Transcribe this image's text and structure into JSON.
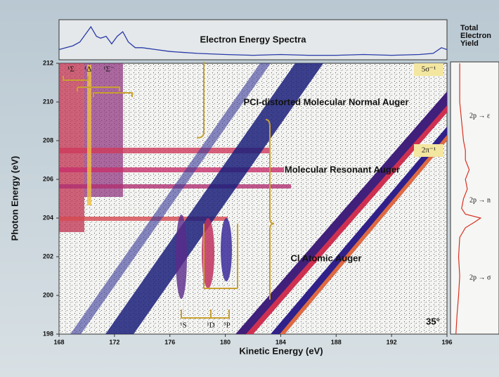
{
  "chart_data": {
    "type": "energy-map",
    "xlabel": "Kinetic Energy (eV)",
    "ylabel": "Photon Energy (eV)",
    "xlim": [
      168,
      196
    ],
    "xticks": [
      168,
      172,
      176,
      180,
      184,
      188,
      192,
      196
    ],
    "ylim": [
      198,
      212
    ],
    "yticks": [
      198,
      200,
      202,
      204,
      206,
      208,
      210,
      212
    ],
    "annotations": [
      "PCI-distorted Molecular Normal Auger",
      "Molecular Resonant Auger",
      "Cl Atomic Auger",
      "5σ⁻¹",
      "2π⁻¹",
      "35°",
      "¹Σ",
      "¹Δ",
      "¹Σ⁻",
      "¹S",
      "¹D",
      "³P"
    ],
    "top_spectrum": {
      "title": "Electron Energy Spectra",
      "color": "#2a3aa8",
      "ylim": [
        0,
        1
      ],
      "x": [
        168,
        168.5,
        169,
        169.5,
        170,
        170.3,
        170.7,
        171,
        171.4,
        171.8,
        172.2,
        172.6,
        173,
        173.5,
        174,
        175,
        176,
        178,
        180,
        182,
        184,
        186,
        188,
        190,
        192,
        194,
        195,
        195.6,
        196
      ],
      "values": [
        0.25,
        0.3,
        0.35,
        0.45,
        0.7,
        0.85,
        0.6,
        0.55,
        0.6,
        0.4,
        0.6,
        0.72,
        0.45,
        0.3,
        0.3,
        0.25,
        0.2,
        0.15,
        0.12,
        0.1,
        0.12,
        0.1,
        0.1,
        0.12,
        0.1,
        0.12,
        0.15,
        0.3,
        0.25
      ]
    },
    "yield_panel": {
      "title": [
        "Total",
        "Electron",
        "Yield"
      ],
      "color": "#d83020",
      "xlim": [
        0,
        1
      ],
      "y": [
        198,
        199,
        200,
        201,
        202,
        203,
        203.5,
        203.8,
        204,
        204.2,
        204.5,
        205,
        205.5,
        206,
        206.5,
        207,
        207.5,
        208,
        209,
        210,
        211,
        212
      ],
      "values": [
        0.05,
        0.08,
        0.12,
        0.15,
        0.12,
        0.15,
        0.3,
        0.55,
        0.7,
        0.3,
        0.2,
        0.25,
        0.35,
        0.3,
        0.4,
        0.3,
        0.3,
        0.25,
        0.2,
        0.15,
        0.15,
        0.15
      ],
      "labels": [
        "2p → ε",
        "2p → n",
        "2p → σ"
      ]
    }
  }
}
